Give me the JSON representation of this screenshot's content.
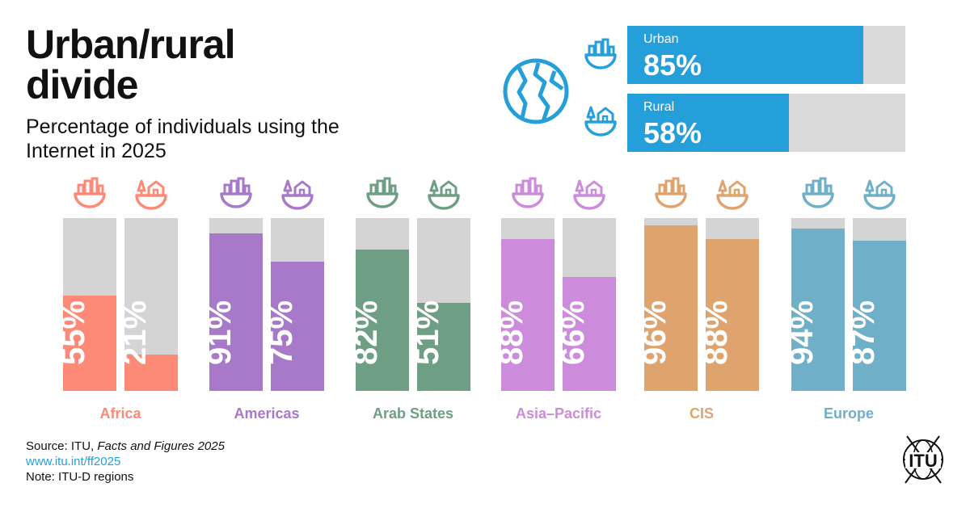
{
  "title": "Urban/rural divide",
  "subtitle": "Percentage of individuals using the Internet in 2025",
  "summary": {
    "urban": {
      "label": "Urban",
      "value": 85,
      "value_text": "85%",
      "icon": "city-bowl-icon"
    },
    "rural": {
      "label": "Rural",
      "value": 58,
      "value_text": "58%",
      "icon": "village-bowl-icon"
    },
    "color": "#259fda"
  },
  "chart_data": {
    "type": "bar",
    "title": "Urban/rural divide",
    "subtitle": "Percentage of individuals using the Internet in 2025",
    "categories": [
      "Africa",
      "Americas",
      "Arab States",
      "Asia–Pacific",
      "CIS",
      "Europe"
    ],
    "series": [
      {
        "name": "Urban",
        "values": [
          55,
          91,
          82,
          88,
          96,
          94
        ]
      },
      {
        "name": "Rural",
        "values": [
          21,
          75,
          51,
          66,
          88,
          87
        ]
      }
    ],
    "ylim": [
      0,
      100
    ],
    "unit": "%",
    "colors": [
      "#fd8a77",
      "#a779c8",
      "#6e9e84",
      "#cc8cdb",
      "#dfa46e",
      "#6fb0c8"
    ]
  },
  "regions": [
    {
      "name": "Africa",
      "urban_text": "55%",
      "rural_text": "21%"
    },
    {
      "name": "Americas",
      "urban_text": "91%",
      "rural_text": "75%"
    },
    {
      "name": "Arab States",
      "urban_text": "82%",
      "rural_text": "51%"
    },
    {
      "name": "Asia–Pacific",
      "urban_text": "88%",
      "rural_text": "66%"
    },
    {
      "name": "CIS",
      "urban_text": "96%",
      "rural_text": "88%"
    },
    {
      "name": "Europe",
      "urban_text": "94%",
      "rural_text": "87%"
    }
  ],
  "source": {
    "prefix": "Source: ITU, ",
    "publication": "Facts and Figures 2025",
    "link": "www.itu.int/ff2025",
    "note": "Note: ITU-D regions"
  },
  "logo_text": "ITU",
  "track_color": "#d4d4d4"
}
